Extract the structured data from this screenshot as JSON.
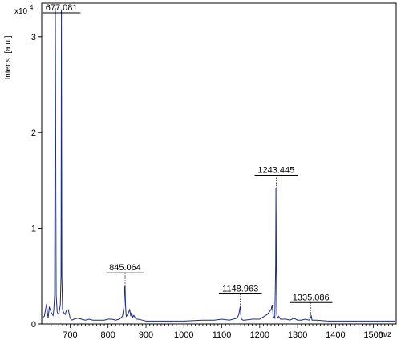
{
  "chart_data": {
    "type": "line",
    "title": "",
    "ylabel": "Intens. [a.u.]",
    "xlabel": "m/z",
    "y_scale_label": "x10",
    "y_scale_exponent": "4",
    "xlim": [
      625,
      1560
    ],
    "ylim": [
      0,
      3.35
    ],
    "x_ticks": [
      700,
      800,
      900,
      1000,
      1100,
      1200,
      1300,
      1400,
      1500
    ],
    "y_ticks": [
      0,
      1,
      2,
      3
    ],
    "series": [
      {
        "color": "#1f2a80",
        "x": [
          625,
          632,
          638,
          640,
          642,
          645,
          650,
          655,
          657,
          659,
          661,
          663,
          666,
          670,
          674,
          676,
          677,
          678,
          680,
          683,
          687,
          690,
          695,
          698,
          700,
          702,
          705,
          710,
          720,
          730,
          740,
          750,
          760,
          770,
          780,
          790,
          800,
          810,
          820,
          830,
          838,
          842,
          844,
          845,
          846,
          848,
          852,
          857,
          860,
          862,
          865,
          868,
          872,
          875,
          880,
          890,
          900,
          920,
          950,
          1000,
          1050,
          1080,
          1100,
          1120,
          1140,
          1145,
          1148,
          1149,
          1150,
          1152,
          1156,
          1160,
          1180,
          1200,
          1220,
          1230,
          1233,
          1236,
          1240,
          1242,
          1243,
          1244,
          1245,
          1247,
          1250,
          1255,
          1260,
          1270,
          1280,
          1290,
          1300,
          1310,
          1320,
          1330,
          1334,
          1336,
          1338,
          1342,
          1350,
          1380,
          1400,
          1450,
          1500,
          1556
        ],
        "y": [
          0.06,
          0.08,
          0.21,
          0.12,
          0.06,
          0.18,
          0.12,
          0.09,
          0.15,
          0.3,
          3.3,
          0.3,
          0.12,
          0.1,
          0.2,
          0.5,
          3.28,
          0.5,
          0.15,
          0.12,
          0.1,
          0.14,
          0.15,
          0.1,
          0.06,
          0.05,
          0.04,
          0.05,
          0.06,
          0.05,
          0.04,
          0.05,
          0.04,
          0.04,
          0.04,
          0.04,
          0.05,
          0.05,
          0.04,
          0.05,
          0.08,
          0.18,
          0.38,
          0.4,
          0.2,
          0.08,
          0.1,
          0.15,
          0.08,
          0.12,
          0.07,
          0.09,
          0.06,
          0.05,
          0.05,
          0.04,
          0.03,
          0.03,
          0.03,
          0.03,
          0.04,
          0.04,
          0.05,
          0.04,
          0.06,
          0.1,
          0.17,
          0.18,
          0.1,
          0.05,
          0.04,
          0.04,
          0.05,
          0.05,
          0.1,
          0.15,
          0.2,
          0.08,
          0.06,
          0.6,
          1.42,
          0.6,
          0.1,
          0.06,
          0.08,
          0.05,
          0.05,
          0.05,
          0.04,
          0.06,
          0.04,
          0.04,
          0.05,
          0.04,
          0.06,
          0.09,
          0.04,
          0.04,
          0.04,
          0.03,
          0.03,
          0.03,
          0.03,
          0.03
        ]
      }
    ],
    "annotations": [
      {
        "text": "677.081",
        "x": 677.081,
        "y": 3.28
      },
      {
        "text": "845.064",
        "x": 845.064,
        "y": 0.4
      },
      {
        "text": "1148.963",
        "x": 1148.963,
        "y": 0.18
      },
      {
        "text": "1243.445",
        "x": 1243.445,
        "y": 1.42
      },
      {
        "text": "1335.086",
        "x": 1335.086,
        "y": 0.09
      }
    ]
  }
}
